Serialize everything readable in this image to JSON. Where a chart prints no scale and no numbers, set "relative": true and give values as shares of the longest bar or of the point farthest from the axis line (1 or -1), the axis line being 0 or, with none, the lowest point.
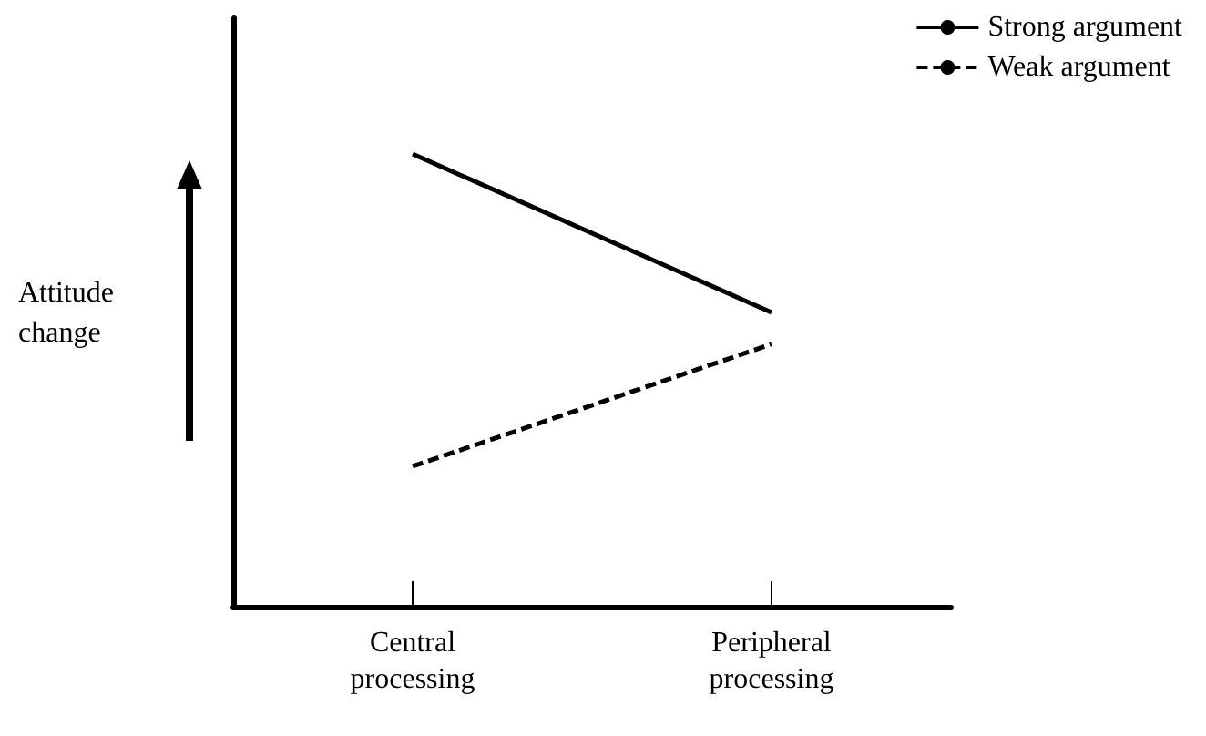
{
  "chart_data": {
    "type": "line",
    "relative": true,
    "ylabel": "Attitude change",
    "categories": [
      "Central processing",
      "Peripheral processing"
    ],
    "series": [
      {
        "name": "Strong argument",
        "color": "#000000",
        "values": [
          1,
          0.65
        ],
        "line_style": "solid"
      },
      {
        "name": "Weak argument",
        "color": "#000000",
        "values": [
          0.31,
          0.58
        ],
        "line_style": "dashed"
      }
    ],
    "legend": "top right",
    "grid": false,
    "marker": "none"
  }
}
